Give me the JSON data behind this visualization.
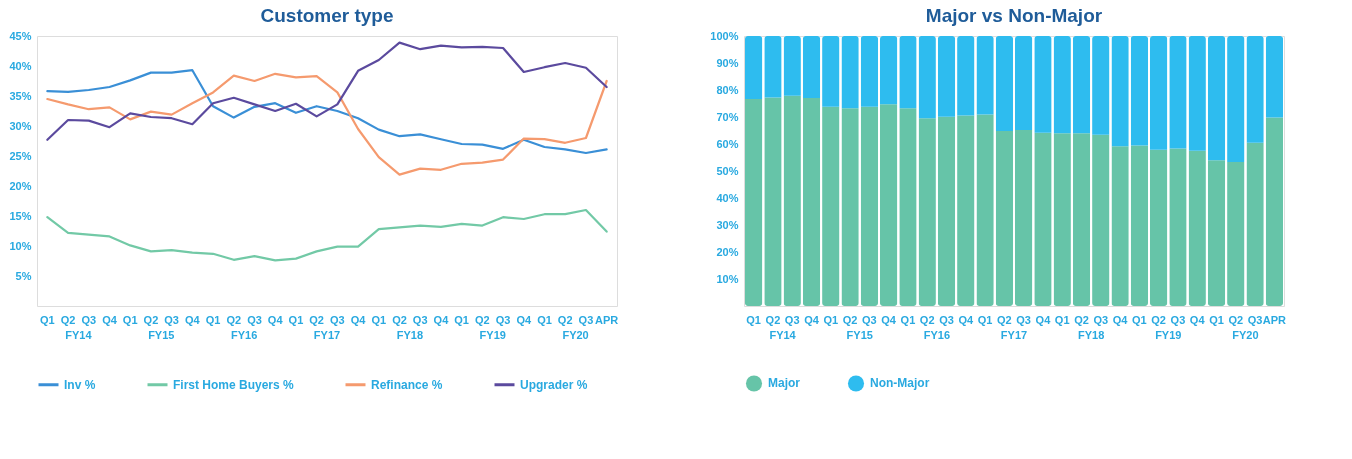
{
  "chart_data": [
    {
      "type": "line",
      "title": "Customer type",
      "categories": [
        "Q1",
        "Q2",
        "Q3",
        "Q4",
        "Q1",
        "Q2",
        "Q3",
        "Q4",
        "Q1",
        "Q2",
        "Q3",
        "Q4",
        "Q1",
        "Q2",
        "Q3",
        "Q4",
        "Q1",
        "Q2",
        "Q3",
        "Q4",
        "Q1",
        "Q2",
        "Q3",
        "Q4",
        "Q1",
        "Q2",
        "Q3",
        "APR"
      ],
      "series": [
        {
          "name": "Inv %",
          "color": "#3a8fd6",
          "values": [
            35.8,
            35.7,
            36.0,
            36.5,
            37.6,
            38.9,
            38.9,
            39.3,
            33.3,
            31.4,
            33.2,
            33.8,
            32.2,
            33.3,
            32.5,
            31.3,
            29.4,
            28.3,
            28.6,
            27.8,
            27.0,
            26.9,
            26.2,
            27.7,
            26.5,
            26.1,
            25.5,
            26.1
          ]
        },
        {
          "name": "First Home Buyers %",
          "color": "#72c9a6",
          "values": [
            14.8,
            12.2,
            11.9,
            11.6,
            10.1,
            9.1,
            9.3,
            8.9,
            8.7,
            7.7,
            8.3,
            7.6,
            7.9,
            9.1,
            9.9,
            9.9,
            12.8,
            13.1,
            13.4,
            13.2,
            13.7,
            13.4,
            14.8,
            14.5,
            15.3,
            15.3,
            16.0,
            12.4
          ]
        },
        {
          "name": "Refinance %",
          "color": "#f59a6e",
          "values": [
            34.5,
            33.6,
            32.8,
            33.1,
            31.1,
            32.4,
            31.9,
            33.8,
            35.6,
            38.4,
            37.5,
            38.7,
            38.1,
            38.3,
            35.6,
            29.5,
            24.8,
            21.9,
            22.9,
            22.7,
            23.7,
            23.9,
            24.4,
            27.9,
            27.8,
            27.2,
            28.0,
            37.5
          ]
        },
        {
          "name": "Upgrader %",
          "color": "#5b4a9e",
          "values": [
            27.7,
            31.0,
            30.9,
            29.8,
            32.1,
            31.5,
            31.3,
            30.3,
            33.8,
            34.7,
            33.6,
            32.5,
            33.7,
            31.6,
            33.6,
            39.2,
            41.0,
            43.9,
            42.8,
            43.4,
            43.1,
            43.2,
            43.0,
            39.0,
            39.8,
            40.5,
            39.7,
            36.5
          ]
        }
      ],
      "ylim": [
        0,
        45
      ],
      "yticks": [
        {
          "value": 5,
          "label": "5%"
        },
        {
          "value": 10,
          "label": "10%"
        },
        {
          "value": 15,
          "label": "15%"
        },
        {
          "value": 20,
          "label": "20%"
        },
        {
          "value": 25,
          "label": "25%"
        },
        {
          "value": 30,
          "label": "30%"
        },
        {
          "value": 35,
          "label": "35%"
        },
        {
          "value": 40,
          "label": "40%"
        },
        {
          "value": 45,
          "label": "45%"
        }
      ],
      "grid": false,
      "legend": "bottom",
      "annotations": [
        "FY14",
        "FY15",
        "FY16",
        "FY17",
        "FY18",
        "FY19",
        "FY20"
      ]
    },
    {
      "type": "bar",
      "title": "Major vs Non-Major",
      "stacked": true,
      "categories": [
        "Q1",
        "Q2",
        "Q3",
        "Q4",
        "Q1",
        "Q2",
        "Q3",
        "Q4",
        "Q1",
        "Q2",
        "Q3",
        "Q4",
        "Q1",
        "Q2",
        "Q3",
        "Q4",
        "Q1",
        "Q2",
        "Q3",
        "Q4",
        "Q1",
        "Q2",
        "Q3",
        "Q4",
        "Q1",
        "Q2",
        "Q3",
        "APR"
      ],
      "series": [
        {
          "name": "Major",
          "color": "#66c4a8",
          "values": [
            76.7,
            77.2,
            77.9,
            77.0,
            73.8,
            73.2,
            73.8,
            74.7,
            73.2,
            69.5,
            70.1,
            70.6,
            70.9,
            64.8,
            65.2,
            64.2,
            64.0,
            64.0,
            63.4,
            59.2,
            59.4,
            57.9,
            58.3,
            57.5,
            54.0,
            53.3,
            60.5,
            69.8
          ]
        },
        {
          "name": "Non-Major",
          "color": "#2ebcef",
          "values": [
            23.3,
            22.8,
            22.1,
            23.0,
            26.2,
            26.8,
            26.2,
            25.3,
            26.8,
            30.5,
            29.9,
            29.4,
            29.1,
            35.2,
            34.8,
            35.8,
            36.0,
            36.0,
            36.6,
            40.8,
            40.6,
            42.1,
            41.7,
            42.5,
            46.0,
            46.7,
            39.5,
            30.2
          ]
        }
      ],
      "ylim": [
        0,
        100
      ],
      "yticks": [
        {
          "value": 10,
          "label": "10%"
        },
        {
          "value": 20,
          "label": "20%"
        },
        {
          "value": 30,
          "label": "30%"
        },
        {
          "value": 40,
          "label": "40%"
        },
        {
          "value": 50,
          "label": "50%"
        },
        {
          "value": 60,
          "label": "60%"
        },
        {
          "value": 70,
          "label": "70%"
        },
        {
          "value": 80,
          "label": "80%"
        },
        {
          "value": 90,
          "label": "90%"
        },
        {
          "value": 100,
          "label": "100%"
        }
      ],
      "grid": false,
      "legend": "bottom",
      "annotations": [
        "FY14",
        "FY15",
        "FY16",
        "FY17",
        "FY18",
        "FY19",
        "FY20"
      ]
    }
  ]
}
